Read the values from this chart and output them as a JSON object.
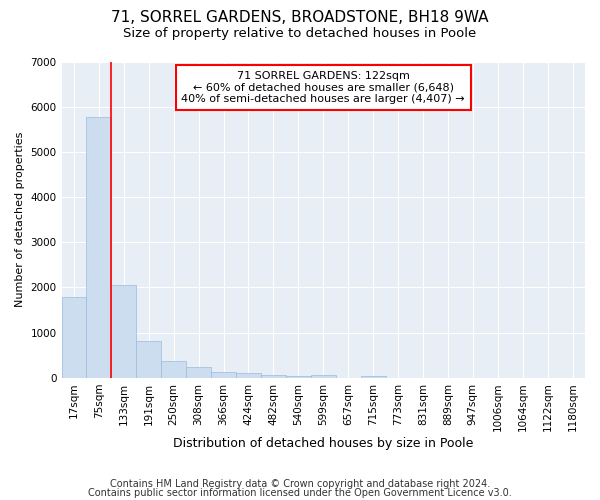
{
  "title1": "71, SORREL GARDENS, BROADSTONE, BH18 9WA",
  "title2": "Size of property relative to detached houses in Poole",
  "xlabel": "Distribution of detached houses by size in Poole",
  "ylabel": "Number of detached properties",
  "bar_labels": [
    "17sqm",
    "75sqm",
    "133sqm",
    "191sqm",
    "250sqm",
    "308sqm",
    "366sqm",
    "424sqm",
    "482sqm",
    "540sqm",
    "599sqm",
    "657sqm",
    "715sqm",
    "773sqm",
    "831sqm",
    "889sqm",
    "947sqm",
    "1006sqm",
    "1064sqm",
    "1122sqm",
    "1180sqm"
  ],
  "bar_values": [
    1780,
    5780,
    2060,
    820,
    380,
    230,
    130,
    110,
    60,
    50,
    60,
    0,
    50,
    0,
    0,
    0,
    0,
    0,
    0,
    0,
    0
  ],
  "bar_color": "#ccddf0",
  "bar_edge_color": "#99bbdd",
  "vline_x": 1.5,
  "vline_color": "red",
  "annotation_title": "71 SORREL GARDENS: 122sqm",
  "annotation_line1": "← 60% of detached houses are smaller (6,648)",
  "annotation_line2": "40% of semi-detached houses are larger (4,407) →",
  "annotation_box_color": "white",
  "annotation_box_edge": "red",
  "ylim": [
    0,
    7000
  ],
  "yticks": [
    0,
    1000,
    2000,
    3000,
    4000,
    5000,
    6000,
    7000
  ],
  "footer1": "Contains HM Land Registry data © Crown copyright and database right 2024.",
  "footer2": "Contains public sector information licensed under the Open Government Licence v3.0.",
  "background_color": "#ffffff",
  "plot_bg_color": "#e8eef5",
  "grid_color": "white",
  "title1_fontsize": 11,
  "title2_fontsize": 9.5,
  "xlabel_fontsize": 9,
  "ylabel_fontsize": 8,
  "tick_fontsize": 7.5,
  "footer_fontsize": 7,
  "annot_fontsize": 8
}
